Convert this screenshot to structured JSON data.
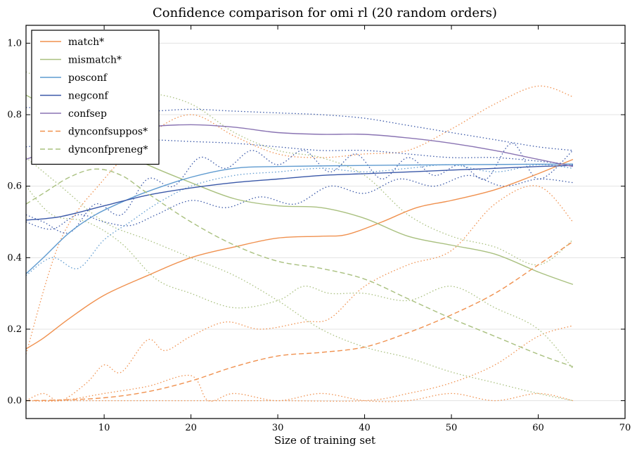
{
  "chart_data": {
    "type": "line",
    "title": "Confidence comparison for omi rl (20 random orders)",
    "xlabel": "Size of training set",
    "ylabel": "",
    "xlim": [
      1,
      70
    ],
    "ylim": [
      -0.05,
      1.05
    ],
    "xticks": [
      10,
      20,
      30,
      40,
      50,
      60,
      70
    ],
    "yticks": [
      0.0,
      0.2,
      0.4,
      0.6,
      0.8,
      1.0
    ],
    "xtick_labels": [
      "10",
      "20",
      "30",
      "40",
      "50",
      "60",
      "70"
    ],
    "ytick_labels": [
      "0.0",
      "0.2",
      "0.4",
      "0.6",
      "0.8",
      "1.0"
    ],
    "grid": "horizontal",
    "legend_position": "top-left",
    "series": [
      {
        "name": "match*",
        "color": "#f0914f",
        "style": "solid",
        "x": [
          1,
          3,
          6,
          10,
          15,
          20,
          25,
          30,
          35,
          38,
          42,
          46,
          50,
          55,
          60,
          64
        ],
        "y": [
          0.145,
          0.175,
          0.23,
          0.295,
          0.35,
          0.4,
          0.43,
          0.455,
          0.46,
          0.465,
          0.5,
          0.54,
          0.56,
          0.59,
          0.635,
          0.675
        ]
      },
      {
        "name": "mismatch*",
        "color": "#a9c07f",
        "style": "solid",
        "x": [
          1,
          5,
          10,
          15,
          20,
          25,
          30,
          35,
          40,
          45,
          50,
          55,
          60,
          64
        ],
        "y": [
          0.855,
          0.8,
          0.72,
          0.66,
          0.61,
          0.565,
          0.545,
          0.54,
          0.51,
          0.46,
          0.435,
          0.41,
          0.36,
          0.325
        ]
      },
      {
        "name": "posconf",
        "color": "#5f9bd0",
        "style": "solid",
        "x": [
          1,
          3,
          6,
          9,
          12,
          15,
          20,
          25,
          30,
          40,
          50,
          64
        ],
        "y": [
          0.355,
          0.4,
          0.47,
          0.52,
          0.555,
          0.585,
          0.625,
          0.65,
          0.655,
          0.658,
          0.66,
          0.662
        ]
      },
      {
        "name": "negconf",
        "color": "#3a58a8",
        "style": "solid",
        "x": [
          1,
          5,
          10,
          15,
          20,
          25,
          30,
          35,
          40,
          45,
          50,
          55,
          60,
          64
        ],
        "y": [
          0.505,
          0.515,
          0.545,
          0.575,
          0.595,
          0.61,
          0.62,
          0.63,
          0.635,
          0.64,
          0.645,
          0.65,
          0.655,
          0.658
        ]
      },
      {
        "name": "confsep",
        "color": "#8a74b3",
        "style": "solid",
        "x": [
          1,
          5,
          10,
          15,
          20,
          25,
          30,
          35,
          40,
          45,
          50,
          55,
          60,
          64
        ],
        "y": [
          0.675,
          0.71,
          0.74,
          0.765,
          0.772,
          0.765,
          0.75,
          0.745,
          0.745,
          0.735,
          0.72,
          0.7,
          0.675,
          0.655
        ]
      },
      {
        "name": "dynconfsuppos*",
        "color": "#f0914f",
        "style": "dashed",
        "x": [
          1,
          5,
          10,
          15,
          20,
          25,
          30,
          35,
          40,
          45,
          50,
          55,
          60,
          64
        ],
        "y": [
          0.0,
          0.002,
          0.008,
          0.025,
          0.055,
          0.095,
          0.125,
          0.135,
          0.15,
          0.19,
          0.24,
          0.3,
          0.38,
          0.445
        ]
      },
      {
        "name": "dynconfpreneg*",
        "color": "#a9c07f",
        "style": "dashed",
        "x": [
          1,
          3,
          6,
          9,
          12,
          15,
          20,
          25,
          30,
          35,
          40,
          45,
          50,
          55,
          60,
          64
        ],
        "y": [
          0.55,
          0.58,
          0.625,
          0.648,
          0.63,
          0.58,
          0.5,
          0.435,
          0.39,
          0.37,
          0.34,
          0.285,
          0.23,
          0.18,
          0.13,
          0.095
        ]
      },
      {
        "name": "",
        "color": "#f0914f",
        "style": "dotted",
        "x": [
          1,
          5,
          10,
          15,
          20,
          25,
          30,
          35,
          40,
          45,
          50,
          55,
          60,
          64
        ],
        "y": [
          0.13,
          0.45,
          0.62,
          0.74,
          0.8,
          0.74,
          0.69,
          0.68,
          0.69,
          0.7,
          0.76,
          0.83,
          0.88,
          0.85
        ]
      },
      {
        "name": "",
        "color": "#f0914f",
        "style": "dotted",
        "x": [
          1,
          3,
          5,
          8,
          10,
          12,
          15,
          17,
          20,
          24,
          28,
          33,
          36,
          40,
          45,
          50,
          55,
          60,
          64
        ],
        "y": [
          0.0,
          0.02,
          0.0,
          0.05,
          0.1,
          0.08,
          0.17,
          0.14,
          0.18,
          0.22,
          0.2,
          0.22,
          0.23,
          0.32,
          0.38,
          0.42,
          0.55,
          0.6,
          0.5
        ]
      },
      {
        "name": "",
        "color": "#f0914f",
        "style": "dotted",
        "x": [
          1,
          10,
          20,
          30,
          40,
          45,
          50,
          55,
          60,
          64
        ],
        "y": [
          0.0,
          0.0,
          0.0,
          0.0,
          0.0,
          0.02,
          0.05,
          0.1,
          0.18,
          0.21
        ]
      },
      {
        "name": "",
        "color": "#f0914f",
        "style": "dotted",
        "x": [
          1,
          5,
          10,
          15,
          20,
          22,
          25,
          30,
          35,
          40,
          45,
          50,
          55,
          60,
          64
        ],
        "y": [
          0.0,
          0.0,
          0.02,
          0.04,
          0.07,
          0.0,
          0.02,
          0.0,
          0.02,
          0.0,
          0.0,
          0.02,
          0.0,
          0.02,
          0.0
        ]
      },
      {
        "name": "",
        "color": "#a9c07f",
        "style": "dotted",
        "x": [
          1,
          5,
          10,
          15,
          20,
          25,
          30,
          35,
          40,
          45,
          50,
          55,
          60,
          64
        ],
        "y": [
          0.92,
          0.88,
          0.85,
          0.86,
          0.83,
          0.75,
          0.7,
          0.68,
          0.63,
          0.52,
          0.46,
          0.43,
          0.38,
          0.45
        ]
      },
      {
        "name": "",
        "color": "#a9c07f",
        "style": "dotted",
        "x": [
          1,
          4,
          8,
          12,
          16,
          20,
          25,
          30,
          33,
          36,
          40,
          45,
          50,
          55,
          60,
          64
        ],
        "y": [
          0.6,
          0.52,
          0.5,
          0.44,
          0.34,
          0.3,
          0.26,
          0.28,
          0.32,
          0.3,
          0.3,
          0.28,
          0.32,
          0.26,
          0.2,
          0.09
        ]
      },
      {
        "name": "",
        "color": "#a9c07f",
        "style": "dotted",
        "x": [
          1,
          5,
          10,
          15,
          20,
          25,
          30,
          35,
          40,
          45,
          50,
          55,
          60,
          64
        ],
        "y": [
          0.68,
          0.6,
          0.5,
          0.45,
          0.4,
          0.35,
          0.28,
          0.2,
          0.15,
          0.12,
          0.08,
          0.05,
          0.02,
          0.0
        ]
      },
      {
        "name": "",
        "color": "#3a58a8",
        "style": "dotted",
        "x": [
          1,
          5,
          10,
          15,
          20,
          25,
          30,
          35,
          40,
          45,
          50,
          55,
          60,
          64
        ],
        "y": [
          0.82,
          0.82,
          0.815,
          0.81,
          0.815,
          0.81,
          0.805,
          0.8,
          0.79,
          0.77,
          0.75,
          0.73,
          0.71,
          0.7
        ]
      },
      {
        "name": "",
        "color": "#3a58a8",
        "style": "dotted",
        "x": [
          1,
          5,
          10,
          15,
          20,
          25,
          30,
          35,
          40,
          45,
          50,
          55,
          60,
          64
        ],
        "y": [
          0.71,
          0.72,
          0.73,
          0.73,
          0.725,
          0.72,
          0.71,
          0.7,
          0.7,
          0.69,
          0.68,
          0.68,
          0.67,
          0.66
        ]
      },
      {
        "name": "",
        "color": "#3a58a8",
        "style": "dotted",
        "x": [
          1,
          3,
          6,
          9,
          12,
          15,
          18,
          21,
          24,
          27,
          30,
          33,
          36,
          39,
          42,
          45,
          48,
          51,
          54,
          57,
          60,
          64
        ],
        "y": [
          0.52,
          0.5,
          0.47,
          0.55,
          0.52,
          0.62,
          0.6,
          0.68,
          0.65,
          0.7,
          0.66,
          0.7,
          0.64,
          0.69,
          0.62,
          0.68,
          0.63,
          0.66,
          0.62,
          0.72,
          0.62,
          0.7
        ]
      },
      {
        "name": "",
        "color": "#3a58a8",
        "style": "dotted",
        "x": [
          1,
          4,
          7,
          10,
          13,
          16,
          20,
          24,
          28,
          32,
          36,
          40,
          44,
          48,
          52,
          56,
          60,
          64
        ],
        "y": [
          0.5,
          0.48,
          0.52,
          0.5,
          0.49,
          0.52,
          0.56,
          0.54,
          0.57,
          0.55,
          0.6,
          0.58,
          0.62,
          0.6,
          0.63,
          0.6,
          0.62,
          0.61
        ]
      },
      {
        "name": "",
        "color": "#5f9bd0",
        "style": "dotted",
        "x": [
          1,
          4,
          7,
          10,
          13,
          16,
          20,
          25,
          30,
          35,
          40,
          45,
          50,
          55,
          60,
          64
        ],
        "y": [
          0.35,
          0.4,
          0.37,
          0.45,
          0.5,
          0.55,
          0.6,
          0.63,
          0.64,
          0.65,
          0.64,
          0.65,
          0.66,
          0.64,
          0.66,
          0.65
        ]
      }
    ]
  }
}
